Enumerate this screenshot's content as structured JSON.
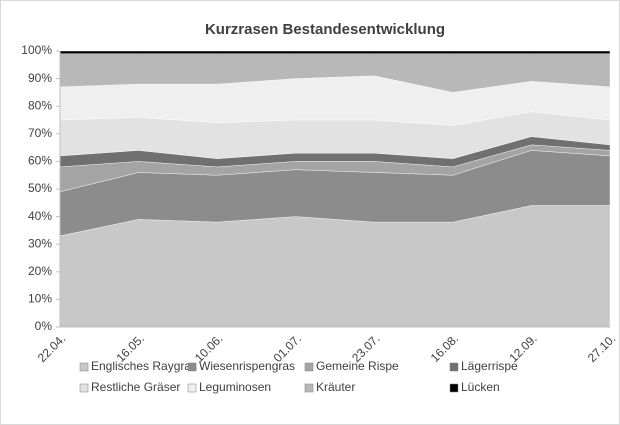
{
  "chart_data": {
    "type": "area",
    "title": "Kurzrasen Bestandesentwicklung",
    "categories": [
      "22.04.",
      "16.05.",
      "10.06.",
      "01.07.",
      "23.07.",
      "16.08.",
      "12.09.",
      "27.10."
    ],
    "series": [
      {
        "name": "Englisches Raygras",
        "color": "#c8c8c8",
        "values": [
          33,
          39,
          38,
          40,
          38,
          38,
          44,
          44
        ]
      },
      {
        "name": "Wiesenrispengras",
        "color": "#8c8c8c",
        "values": [
          16,
          17,
          17,
          17,
          18,
          17,
          20,
          18
        ]
      },
      {
        "name": "Gemeine Rispe",
        "color": "#a4a4a4",
        "values": [
          9,
          4,
          3,
          3,
          4,
          3,
          2,
          2
        ]
      },
      {
        "name": "Lägerrispe",
        "color": "#707070",
        "values": [
          4,
          4,
          3,
          3,
          3,
          3,
          3,
          2
        ]
      },
      {
        "name": "Restliche Gräser",
        "color": "#e2e2e2",
        "values": [
          13,
          12,
          13,
          12,
          12,
          12,
          9,
          9
        ]
      },
      {
        "name": "Leguminosen",
        "color": "#efefef",
        "values": [
          12,
          12,
          14,
          15,
          16,
          12,
          11,
          12
        ]
      },
      {
        "name": "Kräuter",
        "color": "#b8b8b8",
        "values": [
          12,
          11,
          11,
          9,
          8,
          14,
          10,
          12
        ]
      },
      {
        "name": "Lücken",
        "color": "#000000",
        "values": [
          1,
          1,
          1,
          1,
          1,
          1,
          1,
          1
        ]
      }
    ],
    "ylim": [
      0,
      100
    ],
    "yticks": [
      {
        "value": 0,
        "label": "0%"
      },
      {
        "value": 10,
        "label": "10%"
      },
      {
        "value": 20,
        "label": "20%"
      },
      {
        "value": 30,
        "label": "30%"
      },
      {
        "value": 40,
        "label": "40%"
      },
      {
        "value": 50,
        "label": "50%"
      },
      {
        "value": 60,
        "label": "60%"
      },
      {
        "value": 70,
        "label": "70%"
      },
      {
        "value": 80,
        "label": "80%"
      },
      {
        "value": 90,
        "label": "90%"
      },
      {
        "value": 100,
        "label": "100%"
      }
    ],
    "legend": "bottom"
  }
}
